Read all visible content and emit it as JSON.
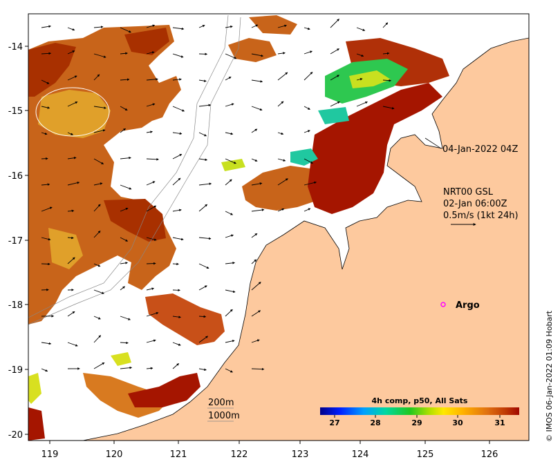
{
  "map": {
    "lon_ticks": [
      "119",
      "120",
      "121",
      "122",
      "123",
      "124",
      "125",
      "126"
    ],
    "lat_ticks": [
      "-14",
      "-15",
      "-16",
      "-17",
      "-18",
      "-19",
      "-20"
    ],
    "composite_time": "04-Jan-2022 04Z",
    "current_model": "NRT00 GSL",
    "current_time": "02-Jan 06:00Z",
    "current_scale": "0.5m/s (1kt 24h)",
    "isobath_shallow": "200m",
    "isobath_deep": "1000m",
    "argo_label": "Argo",
    "credit": "© IMOS 06-Jan-2022 01:09 Hobart",
    "colorbar": {
      "title": "4h comp, p50, All Sats",
      "ticks": [
        "27",
        "28",
        "29",
        "30",
        "31"
      ]
    },
    "colors": {
      "land": "#fdc99e",
      "argo_marker": "#ff00ff",
      "sst_warm": "#a51500",
      "sst_mid": "#c8641a",
      "sst_cool": "#2ec850"
    }
  }
}
